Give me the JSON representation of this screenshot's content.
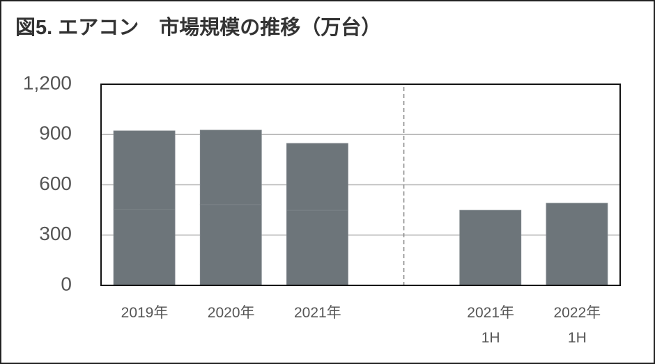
{
  "chart_data": {
    "type": "bar",
    "stacked": true,
    "title": "図5. エアコン　市場規模の推移（万台）",
    "categories": [
      "2019年",
      "2020年",
      "2021年",
      null,
      "2021年\n1H",
      "2022年\n1H"
    ],
    "series": [
      {
        "color": "#6d757a",
        "values": [
          453,
          482,
          448,
          null,
          448,
          490
        ]
      },
      {
        "color": "#6d757a",
        "values": [
          469,
          444,
          399,
          null,
          null,
          null
        ]
      }
    ],
    "ylim": [
      0,
      1200
    ],
    "yticks": [
      0,
      300,
      600,
      900,
      {
        "value": 1200,
        "label": "1,200"
      }
    ],
    "grid": true
  }
}
